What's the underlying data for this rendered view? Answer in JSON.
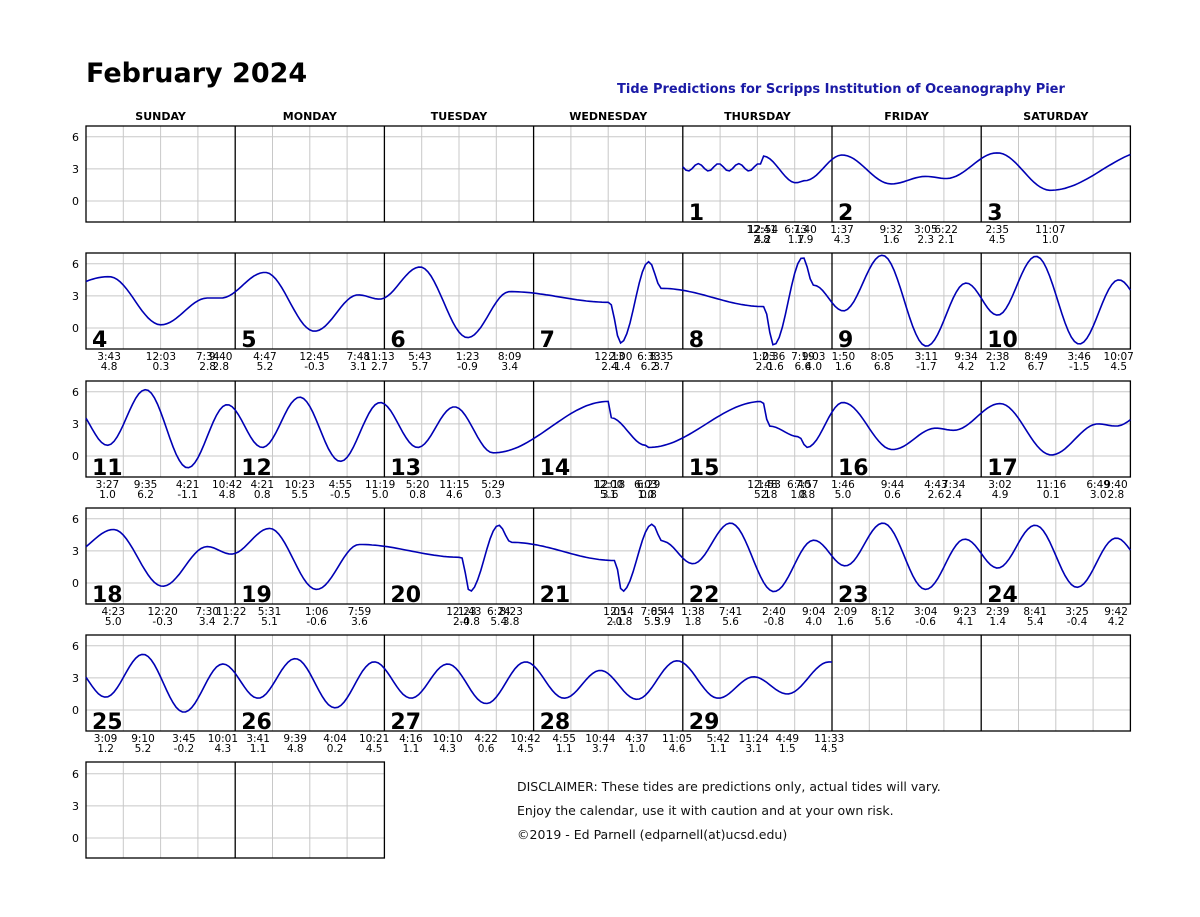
{
  "title": "February 2024",
  "subtitle": "Tide Predictions for Scripps Institution of Oceanography Pier",
  "weekdays": [
    "SUNDAY",
    "MONDAY",
    "TUESDAY",
    "WEDNESDAY",
    "THURSDAY",
    "FRIDAY",
    "SATURDAY"
  ],
  "disclaimer": {
    "line1": "DISCLAIMER: These tides are predictions only, actual tides will vary.",
    "line2": "Enjoy the calendar, use it with caution and at your own risk.",
    "line3": "©2019 - Ed Parnell (edparnell(at)ucsd.edu)"
  },
  "colors": {
    "curve": "#0000b4",
    "grid": "#c8c8c8",
    "frame": "#000000",
    "subtitle": "#1a1aa6"
  },
  "chart_data": {
    "type": "line",
    "title": "February 2024",
    "subtitle": "Tide Predictions for Scripps Institution of Oceanography Pier",
    "ylim": [
      -2,
      7.5
    ],
    "yticks": [
      0,
      3,
      6
    ],
    "grid": true,
    "first_weekday_index": 4,
    "days": [
      {
        "day": 1,
        "tides": [
          {
            "t": "12:54",
            "h": "4.2"
          },
          {
            "t": "7:40",
            "h": "1.9"
          },
          {
            "t": "12:41",
            "h": "2.8"
          },
          {
            "t": "6:13",
            "h": "1.7"
          }
        ]
      },
      {
        "day": 2,
        "tides": [
          {
            "t": "1:37",
            "h": "4.3"
          },
          {
            "t": "9:32",
            "h": "1.6"
          },
          {
            "t": "3:05",
            "h": "2.3"
          },
          {
            "t": "6:22",
            "h": "2.1"
          }
        ]
      },
      {
        "day": 3,
        "tides": [
          {
            "t": "2:35",
            "h": "4.5"
          },
          {
            "t": "11:07",
            "h": "1.0"
          }
        ]
      },
      {
        "day": 4,
        "tides": [
          {
            "t": "3:43",
            "h": "4.8"
          },
          {
            "t": "12:03",
            "h": "0.3"
          },
          {
            "t": "7:34",
            "h": "2.8"
          },
          {
            "t": "9:40",
            "h": "2.8"
          }
        ]
      },
      {
        "day": 5,
        "tides": [
          {
            "t": "4:47",
            "h": "5.2"
          },
          {
            "t": "12:45",
            "h": "-0.3"
          },
          {
            "t": "7:48",
            "h": "3.1"
          },
          {
            "t": "11:13",
            "h": "2.7"
          }
        ]
      },
      {
        "day": 6,
        "tides": [
          {
            "t": "5:43",
            "h": "5.7"
          },
          {
            "t": "1:23",
            "h": "-0.9"
          },
          {
            "t": "8:09",
            "h": "3.4"
          }
        ]
      },
      {
        "day": 7,
        "tides": [
          {
            "t": "12:13",
            "h": "2.4"
          },
          {
            "t": "6:33",
            "h": "6.2"
          },
          {
            "t": "2:00",
            "h": "-1.4"
          },
          {
            "t": "8:35",
            "h": "3.7"
          }
        ]
      },
      {
        "day": 8,
        "tides": [
          {
            "t": "1:03",
            "h": "2.0"
          },
          {
            "t": "7:19",
            "h": "6.6"
          },
          {
            "t": "2:36",
            "h": "-1.6"
          },
          {
            "t": "9:03",
            "h": "4.0"
          }
        ]
      },
      {
        "day": 9,
        "tides": [
          {
            "t": "1:50",
            "h": "1.6"
          },
          {
            "t": "8:05",
            "h": "6.8"
          },
          {
            "t": "3:11",
            "h": "-1.7"
          },
          {
            "t": "9:34",
            "h": "4.2"
          }
        ]
      },
      {
        "day": 10,
        "tides": [
          {
            "t": "2:38",
            "h": "1.2"
          },
          {
            "t": "8:49",
            "h": "6.7"
          },
          {
            "t": "3:46",
            "h": "-1.5"
          },
          {
            "t": "10:07",
            "h": "4.5"
          }
        ]
      },
      {
        "day": 11,
        "tides": [
          {
            "t": "3:27",
            "h": "1.0"
          },
          {
            "t": "9:35",
            "h": "6.2"
          },
          {
            "t": "4:21",
            "h": "-1.1"
          },
          {
            "t": "10:42",
            "h": "4.8"
          }
        ]
      },
      {
        "day": 12,
        "tides": [
          {
            "t": "4:21",
            "h": "0.8"
          },
          {
            "t": "10:23",
            "h": "5.5"
          },
          {
            "t": "4:55",
            "h": "-0.5"
          },
          {
            "t": "11:19",
            "h": "5.0"
          }
        ]
      },
      {
        "day": 13,
        "tides": [
          {
            "t": "5:20",
            "h": "0.8"
          },
          {
            "t": "11:15",
            "h": "4.6"
          },
          {
            "t": "5:29",
            "h": "0.3"
          }
        ]
      },
      {
        "day": 14,
        "tides": [
          {
            "t": "12:00",
            "h": "5.1"
          },
          {
            "t": "6:29",
            "h": "0.8"
          },
          {
            "t": "12:18",
            "h": "3.6"
          },
          {
            "t": "6:03",
            "h": "1.0"
          }
        ]
      },
      {
        "day": 15,
        "tides": [
          {
            "t": "12:48",
            "h": "5.1"
          },
          {
            "t": "7:57",
            "h": "0.8"
          },
          {
            "t": "1:53",
            "h": "2.8"
          },
          {
            "t": "6:40",
            "h": "1.8"
          }
        ]
      },
      {
        "day": 16,
        "tides": [
          {
            "t": "1:46",
            "h": "5.0"
          },
          {
            "t": "9:44",
            "h": "0.6"
          },
          {
            "t": "4:43",
            "h": "2.6"
          },
          {
            "t": "7:34",
            "h": "2.4"
          }
        ]
      },
      {
        "day": 17,
        "tides": [
          {
            "t": "3:02",
            "h": "4.9"
          },
          {
            "t": "11:16",
            "h": "0.1"
          },
          {
            "t": "6:49",
            "h": "3.0"
          },
          {
            "t": "9:40",
            "h": "2.8"
          }
        ]
      },
      {
        "day": 18,
        "tides": [
          {
            "t": "4:23",
            "h": "5.0"
          },
          {
            "t": "12:20",
            "h": "-0.3"
          },
          {
            "t": "7:30",
            "h": "3.4"
          },
          {
            "t": "11:22",
            "h": "2.7"
          }
        ]
      },
      {
        "day": 19,
        "tides": [
          {
            "t": "5:31",
            "h": "5.1"
          },
          {
            "t": "1:06",
            "h": "-0.6"
          },
          {
            "t": "7:59",
            "h": "3.6"
          }
        ]
      },
      {
        "day": 20,
        "tides": [
          {
            "t": "12:23",
            "h": "2.4"
          },
          {
            "t": "6:24",
            "h": "5.4"
          },
          {
            "t": "1:43",
            "h": "-0.8"
          },
          {
            "t": "8:23",
            "h": "3.8"
          }
        ]
      },
      {
        "day": 21,
        "tides": [
          {
            "t": "1:05",
            "h": "2.1"
          },
          {
            "t": "7:05",
            "h": "5.5"
          },
          {
            "t": "2:14",
            "h": "-0.8"
          },
          {
            "t": "8:44",
            "h": "3.9"
          }
        ]
      },
      {
        "day": 22,
        "tides": [
          {
            "t": "1:38",
            "h": "1.8"
          },
          {
            "t": "7:41",
            "h": "5.6"
          },
          {
            "t": "2:40",
            "h": "-0.8"
          },
          {
            "t": "9:04",
            "h": "4.0"
          }
        ]
      },
      {
        "day": 23,
        "tides": [
          {
            "t": "2:09",
            "h": "1.6"
          },
          {
            "t": "8:12",
            "h": "5.6"
          },
          {
            "t": "3:04",
            "h": "-0.6"
          },
          {
            "t": "9:23",
            "h": "4.1"
          }
        ]
      },
      {
        "day": 24,
        "tides": [
          {
            "t": "2:39",
            "h": "1.4"
          },
          {
            "t": "8:41",
            "h": "5.4"
          },
          {
            "t": "3:25",
            "h": "-0.4"
          },
          {
            "t": "9:42",
            "h": "4.2"
          }
        ]
      },
      {
        "day": 25,
        "tides": [
          {
            "t": "3:09",
            "h": "1.2"
          },
          {
            "t": "9:10",
            "h": "5.2"
          },
          {
            "t": "3:45",
            "h": "-0.2"
          },
          {
            "t": "10:01",
            "h": "4.3"
          }
        ]
      },
      {
        "day": 26,
        "tides": [
          {
            "t": "3:41",
            "h": "1.1"
          },
          {
            "t": "9:39",
            "h": "4.8"
          },
          {
            "t": "4:04",
            "h": "0.2"
          },
          {
            "t": "10:21",
            "h": "4.5"
          }
        ]
      },
      {
        "day": 27,
        "tides": [
          {
            "t": "4:16",
            "h": "1.1"
          },
          {
            "t": "10:10",
            "h": "4.3"
          },
          {
            "t": "4:22",
            "h": "0.6"
          },
          {
            "t": "10:42",
            "h": "4.5"
          }
        ]
      },
      {
        "day": 28,
        "tides": [
          {
            "t": "4:55",
            "h": "1.1"
          },
          {
            "t": "10:44",
            "h": "3.7"
          },
          {
            "t": "4:37",
            "h": "1.0"
          },
          {
            "t": "11:05",
            "h": "4.6"
          }
        ]
      },
      {
        "day": 29,
        "tides": [
          {
            "t": "5:42",
            "h": "1.1"
          },
          {
            "t": "11:24",
            "h": "3.1"
          },
          {
            "t": "4:49",
            "h": "1.5"
          },
          {
            "t": "11:33",
            "h": "4.5"
          }
        ]
      }
    ]
  }
}
